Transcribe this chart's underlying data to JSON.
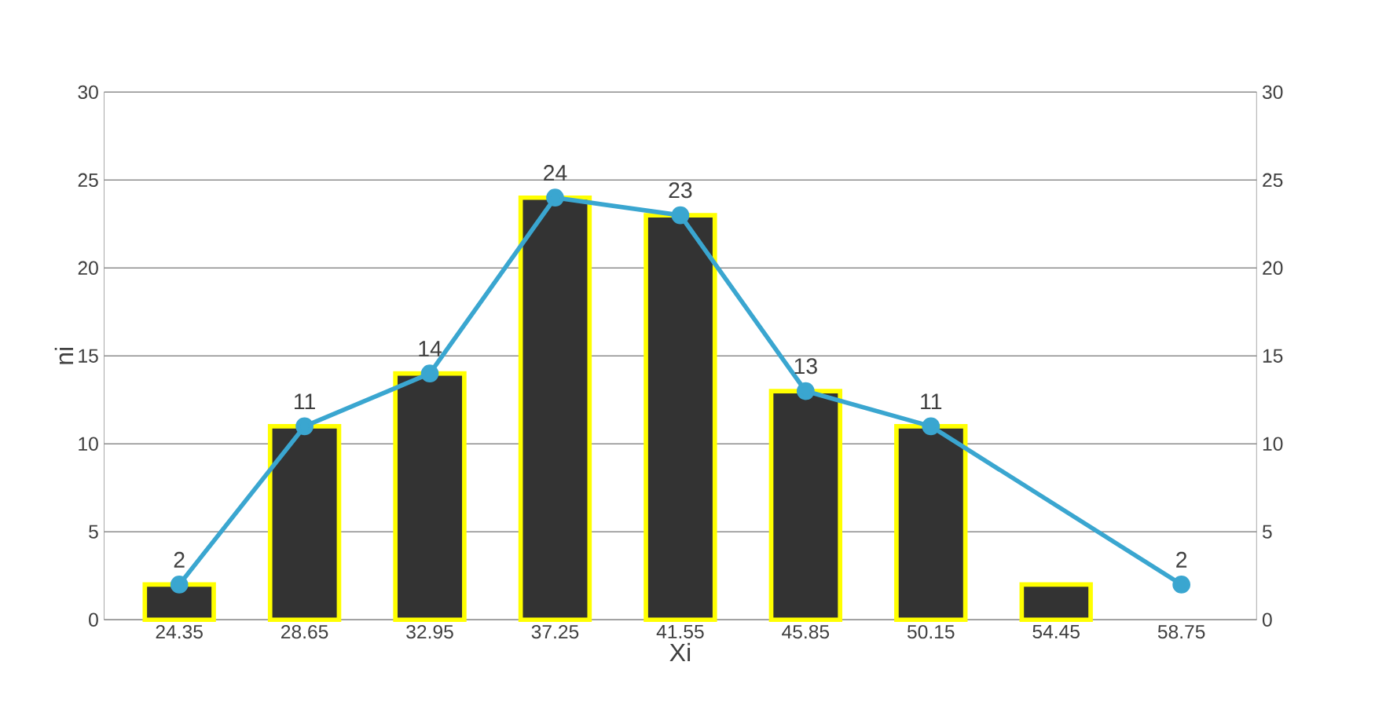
{
  "chart_data": {
    "type": "bar",
    "xlabel": "Xi",
    "ylabel": "ni",
    "categories": [
      "24.35",
      "28.65",
      "32.95",
      "37.25",
      "41.55",
      "45.85",
      "50.15",
      "54.45",
      "58.75"
    ],
    "series": [
      {
        "color": "#333333",
        "values": [
          2,
          11,
          14,
          24,
          23,
          13,
          11,
          2,
          null
        ]
      },
      {
        "type": "line",
        "color": "#3aa6d0",
        "marker": "circle",
        "values": [
          2,
          11,
          14,
          24,
          23,
          13,
          11,
          null,
          2
        ],
        "value_labels": [
          "2",
          "11",
          "14",
          "24",
          "23",
          "13",
          "11",
          null,
          "2"
        ]
      }
    ],
    "ylim": [
      0,
      30
    ],
    "yticks": [
      0,
      5,
      10,
      15,
      20,
      25,
      30
    ],
    "y2lim": [
      0,
      30
    ],
    "y2ticks": [
      0,
      5,
      10,
      15,
      20,
      25,
      30
    ],
    "grid": "y"
  }
}
